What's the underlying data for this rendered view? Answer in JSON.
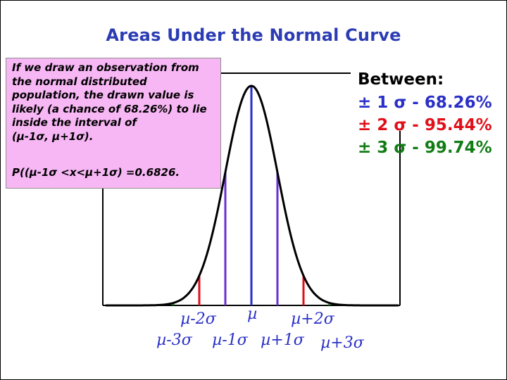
{
  "title": "Areas Under the Normal Curve",
  "info_box": {
    "paragraph": "If we draw an observation from the normal distributed population, the drawn value is likely (a chance of 68.26%) to lie inside the interval of",
    "interval": "(µ-1σ, µ+1σ).",
    "probability": "P((µ-1σ <x<µ+1σ) =0.6826."
  },
  "between": {
    "heading": "Between:",
    "rules": [
      {
        "pm": "±",
        "k": "1",
        "sigma": "σ",
        "pct": "- 68.26%"
      },
      {
        "pm": "±",
        "k": "2",
        "sigma": "σ",
        "pct": "- 95.44%"
      },
      {
        "pm": "±",
        "k": "3",
        "sigma": "σ",
        "pct": "- 99.74%"
      }
    ]
  },
  "axis_labels": {
    "mu_minus_2sigma": "µ-2σ",
    "mu": "µ",
    "mu_plus_2sigma": "µ+2σ",
    "mu_minus_3sigma": "µ-3σ",
    "mu_minus_1sigma": "µ-1σ",
    "mu_plus_1sigma": "µ+1σ",
    "mu_plus_3sigma": "µ+3σ"
  },
  "colors": {
    "title": "#2b3cb4",
    "pink_box": "#f7b6f4",
    "one_sigma": "#6a2fd0",
    "mean": "#2a2fc7",
    "two_sigma": "#e0101a",
    "three_sigma": "#117c14"
  }
}
